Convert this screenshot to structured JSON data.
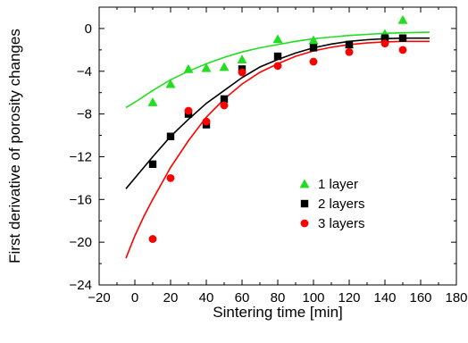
{
  "chart_data": {
    "type": "scatter",
    "title": "",
    "xlabel": "Sintering time [min]",
    "ylabel": "First derivative of porosity changes",
    "xlim": [
      -20,
      180
    ],
    "ylim": [
      -24,
      2
    ],
    "x_ticks": [
      -20,
      0,
      20,
      40,
      60,
      80,
      100,
      120,
      140,
      160,
      180
    ],
    "y_ticks": [
      0,
      -4,
      -8,
      -12,
      -16,
      -20,
      -24
    ],
    "x_tick_labels": [
      "−20",
      "0",
      "20",
      "40",
      "60",
      "80",
      "100",
      "120",
      "140",
      "160",
      "180"
    ],
    "y_tick_labels": [
      "0",
      "−4",
      "−8",
      "−12",
      "−16",
      "−20",
      "−24"
    ],
    "legend_position": "bottom-right",
    "grid": false,
    "series": [
      {
        "name": "1 layer",
        "marker": "triangle",
        "color": "#22dd22",
        "x": [
          10,
          20,
          30,
          40,
          50,
          60,
          80,
          100,
          120,
          140,
          150
        ],
        "y": [
          -6.9,
          -5.2,
          -3.8,
          -3.7,
          -3.6,
          -2.9,
          -1.0,
          -1.1,
          -1.5,
          -0.5,
          0.8
        ],
        "fit": {
          "x": [
            -5,
            0,
            10,
            20,
            30,
            40,
            50,
            60,
            70,
            80,
            90,
            100,
            110,
            120,
            130,
            140,
            150,
            165
          ],
          "y": [
            -7.4,
            -6.9,
            -5.8,
            -4.8,
            -4.0,
            -3.3,
            -2.7,
            -2.2,
            -1.8,
            -1.5,
            -1.2,
            -0.95,
            -0.8,
            -0.65,
            -0.55,
            -0.45,
            -0.4,
            -0.35
          ]
        }
      },
      {
        "name": "2 layers",
        "marker": "square",
        "color": "#000000",
        "x": [
          10,
          20,
          30,
          40,
          50,
          60,
          80,
          100,
          120,
          140,
          150
        ],
        "y": [
          -12.7,
          -10.1,
          -8.0,
          -9.0,
          -6.6,
          -3.8,
          -2.6,
          -1.8,
          -1.5,
          -0.9,
          -0.9
        ],
        "fit": {
          "x": [
            -5,
            0,
            10,
            20,
            30,
            40,
            50,
            60,
            70,
            80,
            90,
            100,
            110,
            120,
            130,
            140,
            150,
            165
          ],
          "y": [
            -15.0,
            -14.0,
            -12.0,
            -10.1,
            -8.5,
            -7.0,
            -5.8,
            -4.6,
            -3.6,
            -2.9,
            -2.3,
            -1.8,
            -1.45,
            -1.2,
            -1.05,
            -0.95,
            -0.9,
            -0.9
          ]
        }
      },
      {
        "name": "3 layers",
        "marker": "circle",
        "color": "#ff0000",
        "x": [
          10,
          20,
          30,
          40,
          50,
          60,
          80,
          100,
          120,
          140,
          150
        ],
        "y": [
          -19.7,
          -14.0,
          -7.7,
          -8.7,
          -7.2,
          -4.1,
          -3.5,
          -3.1,
          -2.2,
          -1.4,
          -2.0
        ],
        "fit": {
          "x": [
            -5,
            0,
            5,
            10,
            20,
            30,
            40,
            50,
            60,
            70,
            80,
            90,
            100,
            110,
            120,
            130,
            140,
            150,
            165
          ],
          "y": [
            -21.5,
            -19.4,
            -17.6,
            -16.0,
            -13.0,
            -10.5,
            -8.3,
            -6.6,
            -5.2,
            -4.1,
            -3.3,
            -2.6,
            -2.1,
            -1.75,
            -1.5,
            -1.35,
            -1.25,
            -1.2,
            -1.2
          ]
        }
      }
    ]
  }
}
